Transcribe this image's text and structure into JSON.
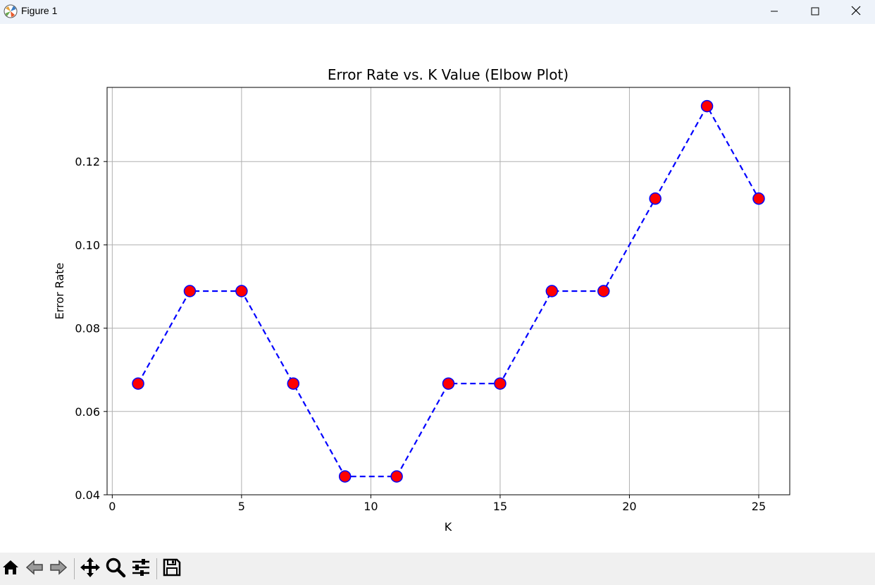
{
  "window": {
    "title": "Figure 1",
    "icons": [
      "matplotlib-icon",
      "minimize-icon",
      "maximize-icon",
      "close-icon"
    ]
  },
  "toolbar": {
    "icons": [
      "home-icon",
      "back-icon",
      "forward-icon",
      "pan-icon",
      "zoom-icon",
      "configure-subplots-icon",
      "save-icon"
    ]
  },
  "chart_data": {
    "type": "line",
    "title": "Error Rate vs. K Value (Elbow Plot)",
    "xlabel": "K",
    "ylabel": "Error Rate",
    "x": [
      1,
      3,
      5,
      7,
      9,
      11,
      13,
      15,
      17,
      19,
      21,
      23,
      25
    ],
    "series": [
      {
        "values": [
          0.0667,
          0.0889,
          0.0889,
          0.0667,
          0.0444,
          0.0444,
          0.0667,
          0.0667,
          0.0889,
          0.0889,
          0.1111,
          0.1333,
          0.1111
        ],
        "line_color": "#0000ff",
        "line_style": "dashed",
        "marker": "circle",
        "marker_face": "#ff0000",
        "marker_edge": "#0000ff"
      }
    ],
    "xlim": [
      -0.2,
      26.2
    ],
    "ylim": [
      0.04,
      0.1378
    ],
    "xticks": [
      0,
      5,
      10,
      15,
      20,
      25
    ],
    "xtick_labels": [
      "0",
      "5",
      "10",
      "15",
      "20",
      "25"
    ],
    "yticks": [
      0.04,
      0.06,
      0.08,
      0.1,
      0.12
    ],
    "ytick_labels": [
      "0.04",
      "0.06",
      "0.08",
      "0.10",
      "0.12"
    ],
    "grid": true,
    "grid_color": "#b0b0b0"
  }
}
